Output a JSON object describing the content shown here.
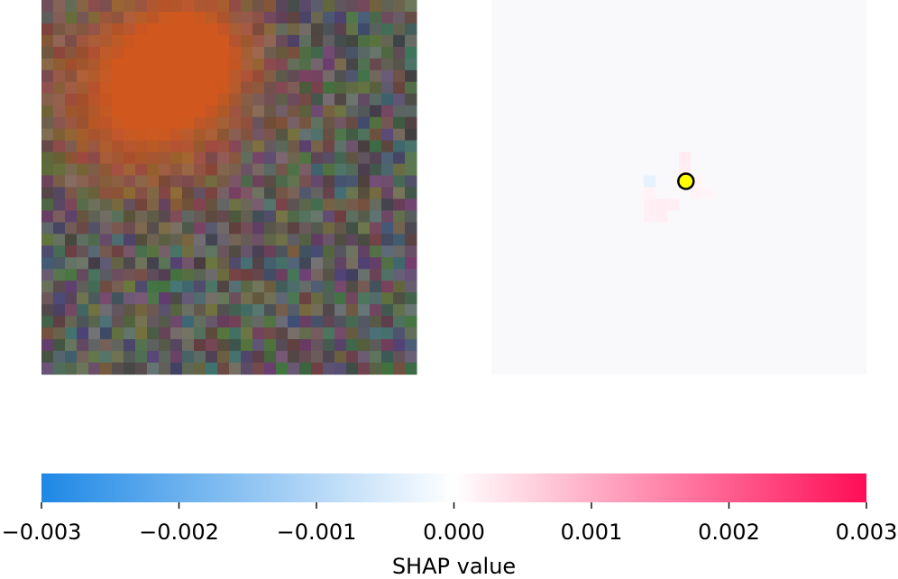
{
  "chart_data": [
    {
      "type": "heatmap",
      "panel": "input-image",
      "description_of_content": "noisy RGB pixel image with two blurred orange blobs",
      "blobs": [
        {
          "center_cell": [
            8,
            8
          ],
          "sigma_cells": 5.5,
          "strength": 1.0
        },
        {
          "center_cell": [
            12.5,
            4
          ],
          "sigma_cells": 3.8,
          "strength": 0.9
        }
      ],
      "grid_cells": 32,
      "blob_color": "#d0581e",
      "noise_base_color": "#5a5a5a"
    },
    {
      "type": "heatmap",
      "panel": "shap-values",
      "grid_cells": 32,
      "cells": [
        {
          "row": 15,
          "col": 16,
          "value": 0.0028
        },
        {
          "row": 15,
          "col": 13,
          "value": -0.00035
        },
        {
          "row": 16,
          "col": 13,
          "value": 0.00015
        },
        {
          "row": 17,
          "col": 13,
          "value": 0.00018
        },
        {
          "row": 17,
          "col": 14,
          "value": 0.00022
        },
        {
          "row": 17,
          "col": 15,
          "value": 0.0002
        },
        {
          "row": 18,
          "col": 13,
          "value": 0.00018
        },
        {
          "row": 18,
          "col": 14,
          "value": 0.0002
        },
        {
          "row": 13,
          "col": 16,
          "value": 0.00025
        },
        {
          "row": 14,
          "col": 16,
          "value": 0.00022
        },
        {
          "row": 15,
          "col": 17,
          "value": 0.00012
        },
        {
          "row": 16,
          "col": 17,
          "value": 0.00015
        },
        {
          "row": 16,
          "col": 18,
          "value": 0.00012
        }
      ],
      "marker": {
        "row": 15.5,
        "col": 16.6,
        "color": "#ffff00"
      }
    },
    {
      "type": "colorbar",
      "range": [
        -0.003,
        0.003
      ],
      "ticks": [
        -0.003,
        -0.002,
        -0.001,
        0.0,
        0.001,
        0.002,
        0.003
      ],
      "tick_labels": [
        "−0.003",
        "−0.002",
        "−0.001",
        "0.000",
        "0.001",
        "0.002",
        "0.003"
      ],
      "xlabel": "SHAP value",
      "color_negative": "#1e88e5",
      "color_mid": "#ffffff",
      "color_positive": "#ff0d57"
    }
  ],
  "colors": {
    "positive": "#ff0d57",
    "negative": "#1e88e5",
    "marker_fill": "#ffff00"
  }
}
